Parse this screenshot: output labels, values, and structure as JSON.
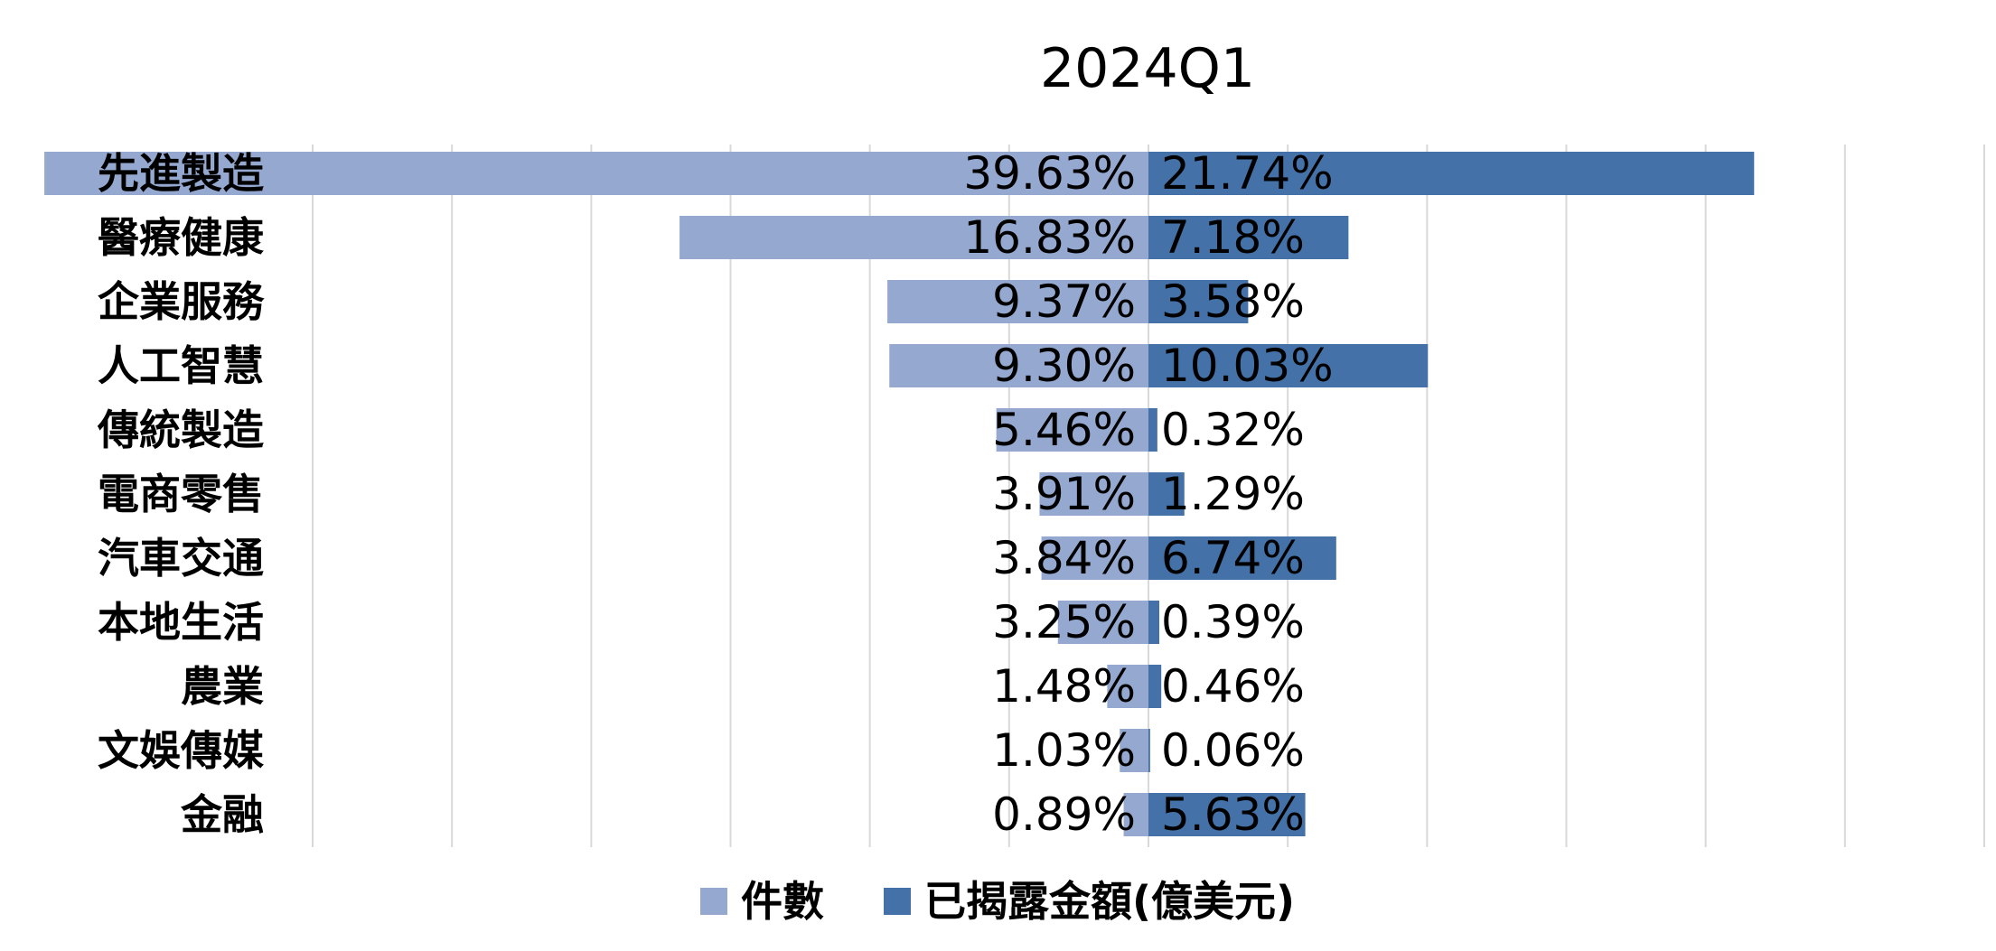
{
  "chart_data": {
    "type": "bar",
    "orientation": "horizontal-diverging",
    "title": "2024Q1",
    "categories": [
      "先進製造",
      "醫療健康",
      "企業服務",
      "人工智慧",
      "傳統製造",
      "電商零售",
      "汽車交通",
      "本地生活",
      "農業",
      "文娛傳媒",
      "金融"
    ],
    "series": [
      {
        "name": "件數",
        "color": "#95A9D0",
        "values": [
          39.63,
          16.83,
          9.37,
          9.3,
          5.46,
          3.91,
          3.84,
          3.25,
          1.48,
          1.03,
          0.89
        ],
        "labels": [
          "39.63%",
          "16.83%",
          "9.37%",
          "9.30%",
          "5.46%",
          "3.91%",
          "3.84%",
          "3.25%",
          "1.48%",
          "1.03%",
          "0.89%"
        ]
      },
      {
        "name": "已揭露金額(億美元)",
        "color": "#4472A8",
        "values": [
          21.74,
          7.18,
          3.58,
          10.03,
          0.32,
          1.29,
          6.74,
          0.39,
          0.46,
          0.06,
          5.63
        ],
        "labels": [
          "21.74%",
          "7.18%",
          "3.58%",
          "10.03%",
          "0.32%",
          "1.29%",
          "6.74%",
          "0.39%",
          "0.46%",
          "0.06%",
          "5.63%"
        ]
      }
    ],
    "xlim": [
      -30,
      30
    ],
    "grid": true,
    "legend_position": "bottom-center"
  }
}
